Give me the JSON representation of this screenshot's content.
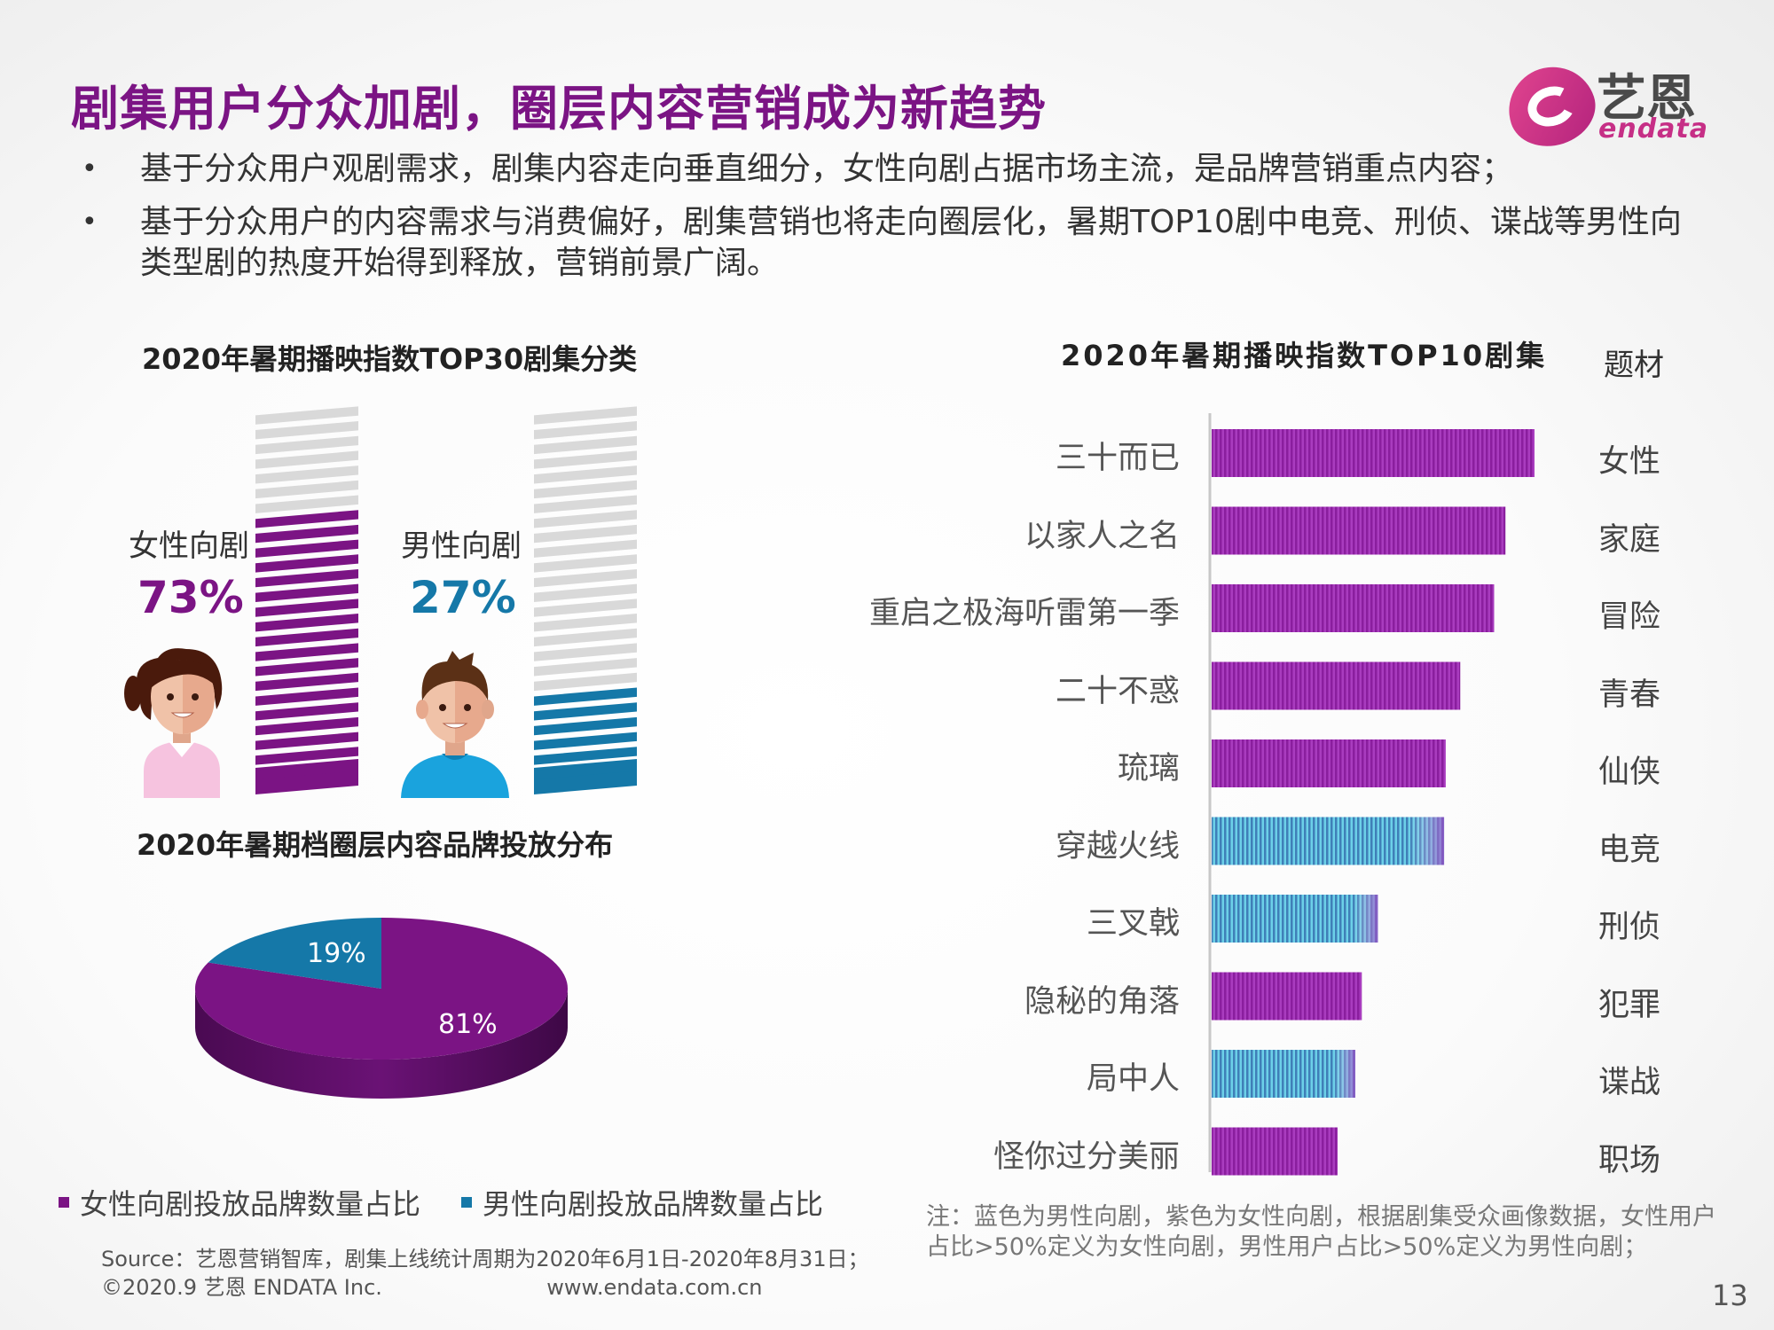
{
  "title": "剧集用户分众加剧，圈层内容营销成为新趋势",
  "logo": {
    "cn": "艺恩",
    "en": "endata"
  },
  "bullets": [
    "基于分众用户观剧需求，剧集内容走向垂直细分，女性向剧占据市场主流，是品牌营销重点内容；",
    "基于分众用户的内容需求与消费偏好，剧集营销也将走向圈层化，暑期TOP10剧中电竞、刑侦、谍战等男性向类型剧的热度开始得到释放，营销前景广阔。"
  ],
  "colors": {
    "female": "#7b1484",
    "male": "#1578a8",
    "stripe_empty": "#d9d9d9"
  },
  "chart_data": [
    {
      "type": "bar",
      "title": "2020年暑期播映指数TOP30剧集分类",
      "categories": [
        "女性向剧",
        "男性向剧"
      ],
      "values": [
        73,
        27
      ],
      "value_labels": [
        "73%",
        "27%"
      ],
      "ylim": [
        0,
        100
      ]
    },
    {
      "type": "pie",
      "title": "2020年暑期档圈层内容品牌投放分布",
      "labels": [
        "女性向剧投放品牌数量占比",
        "男性向剧投放品牌数量占比"
      ],
      "values": [
        81,
        19
      ],
      "value_labels": [
        "81%",
        "19%"
      ],
      "legend": "bottom"
    },
    {
      "type": "bar",
      "orientation": "horizontal",
      "title": "2020年暑期播映指数TOP10剧集",
      "genre_header": "题材",
      "categories": [
        "三十而已",
        "以家人之名",
        "重启之极海听雷第一季",
        "二十不惑",
        "琉璃",
        "穿越火线",
        "三叉戟",
        "隐秘的角落",
        "局中人",
        "怪你过分美丽"
      ],
      "genres": [
        "女性",
        "家庭",
        "冒险",
        "青春",
        "仙侠",
        "电竞",
        "刑侦",
        "犯罪",
        "谍战",
        "职场"
      ],
      "audience": [
        "female",
        "female",
        "female",
        "female",
        "female",
        "male",
        "male",
        "female",
        "male",
        "female"
      ],
      "values": [
        100,
        91,
        87.5,
        77,
        72.5,
        72,
        51.5,
        46.5,
        44.5,
        39
      ],
      "xlim": [
        0,
        100
      ]
    }
  ],
  "note": "注：蓝色为男性向剧，紫色为女性向剧，根据剧集受众画像数据，女性用户占比>50%定义为女性向剧，男性用户占比>50%定义为男性向剧；",
  "source": "Source：艺恩营销智库，剧集上线统计周期为2020年6月1日-2020年8月31日；",
  "copyright": "©2020.9 艺恩 ENDATA Inc.",
  "website": "www.endata.com.cn",
  "page_number": "13"
}
